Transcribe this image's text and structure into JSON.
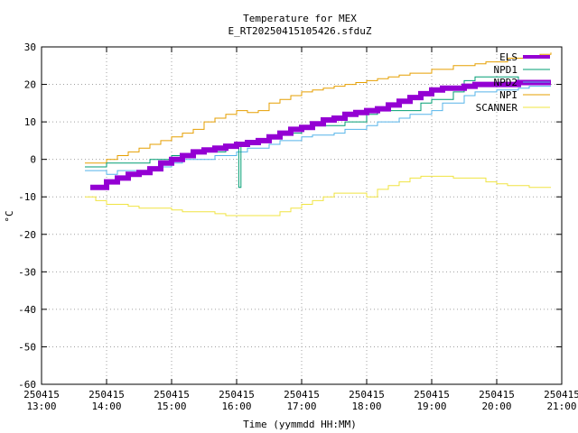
{
  "chart_data": {
    "type": "line",
    "title": "Temperature for MEX",
    "subtitle": "E_RT20250415105426.sfduZ",
    "xlabel": "Time (yymmdd HH:MM)",
    "ylabel": "°C",
    "xlim": [
      "13:00",
      "21:00"
    ],
    "ylim": [
      -60,
      30
    ],
    "yticks": [
      -60,
      -50,
      -40,
      -30,
      -20,
      -10,
      0,
      10,
      20,
      30
    ],
    "xticks": [
      {
        "date": "250415",
        "time": "13:00"
      },
      {
        "date": "250415",
        "time": "14:00"
      },
      {
        "date": "250415",
        "time": "15:00"
      },
      {
        "date": "250415",
        "time": "16:00"
      },
      {
        "date": "250415",
        "time": "17:00"
      },
      {
        "date": "250415",
        "time": "18:00"
      },
      {
        "date": "250415",
        "time": "19:00"
      },
      {
        "date": "250415",
        "time": "20:00"
      },
      {
        "date": "250415",
        "time": "21:00"
      }
    ],
    "grid": true,
    "legend_position": "top-right",
    "series": [
      {
        "name": "ELS",
        "color": "#9400d3",
        "width": 6,
        "x": [
          "13:45",
          "14:00",
          "14:10",
          "14:20",
          "14:30",
          "14:40",
          "14:50",
          "15:00",
          "15:10",
          "15:20",
          "15:30",
          "15:40",
          "15:50",
          "16:00",
          "16:10",
          "16:20",
          "16:30",
          "16:40",
          "16:50",
          "17:00",
          "17:10",
          "17:20",
          "17:30",
          "17:40",
          "17:50",
          "18:00",
          "18:10",
          "18:20",
          "18:30",
          "18:40",
          "18:50",
          "19:00",
          "19:10",
          "19:20",
          "19:30",
          "19:40",
          "19:50",
          "20:00",
          "20:10",
          "20:20",
          "20:30",
          "20:40",
          "20:50"
        ],
        "y": [
          -7.5,
          -6,
          -5,
          -4,
          -3.5,
          -2.5,
          -1,
          0,
          1,
          2,
          2.5,
          3,
          3.5,
          4,
          4.5,
          5,
          6,
          7,
          8,
          8.5,
          9.5,
          10.5,
          11,
          12,
          12.5,
          13,
          13.5,
          14.5,
          15.5,
          16.5,
          17.5,
          18.5,
          19,
          19,
          19.5,
          20,
          20,
          20,
          20,
          20.5,
          20.5,
          20.5,
          20.5
        ]
      },
      {
        "name": "NPD1",
        "color": "#009e73",
        "width": 1,
        "x": [
          "13:40",
          "13:55",
          "14:00",
          "14:30",
          "14:40",
          "15:00",
          "15:20",
          "15:30",
          "15:50",
          "16:00",
          "16:02",
          "16:04",
          "16:10",
          "16:30",
          "16:40",
          "17:00",
          "17:10",
          "17:30",
          "17:40",
          "18:00",
          "18:10",
          "18:30",
          "18:50",
          "19:00",
          "19:20",
          "19:30",
          "19:40",
          "20:00",
          "20:20",
          "20:30",
          "20:50"
        ],
        "y": [
          -2,
          -2,
          -1,
          -1,
          0,
          1,
          1.5,
          2,
          4,
          4,
          -7.5,
          4,
          4.5,
          6,
          7,
          8,
          9,
          9,
          10,
          12,
          13,
          13,
          15,
          16,
          18,
          21,
          22,
          22,
          21,
          20.5,
          20.5
        ]
      },
      {
        "name": "NPD2",
        "color": "#56b4e9",
        "width": 1,
        "x": [
          "13:40",
          "14:00",
          "14:10",
          "14:30",
          "14:40",
          "15:00",
          "15:10",
          "15:30",
          "15:40",
          "16:00",
          "16:10",
          "16:30",
          "16:40",
          "17:00",
          "17:10",
          "17:30",
          "17:40",
          "18:00",
          "18:10",
          "18:30",
          "18:40",
          "19:00",
          "19:10",
          "19:30",
          "19:40",
          "20:00",
          "20:20",
          "20:30",
          "20:50"
        ],
        "y": [
          -3,
          -4,
          -3,
          -3,
          -2,
          -1,
          0,
          0,
          1,
          2,
          3,
          4,
          5,
          6,
          6.5,
          7,
          8,
          9,
          10,
          11,
          12,
          13,
          15,
          17,
          18,
          18.5,
          19,
          19.5,
          19.5
        ]
      },
      {
        "name": "NPI",
        "color": "#e69f00",
        "width": 1,
        "x": [
          "13:40",
          "14:00",
          "14:10",
          "14:20",
          "14:30",
          "14:40",
          "14:50",
          "15:00",
          "15:10",
          "15:20",
          "15:30",
          "15:40",
          "15:50",
          "16:00",
          "16:10",
          "16:20",
          "16:30",
          "16:40",
          "16:50",
          "17:00",
          "17:10",
          "17:20",
          "17:30",
          "17:40",
          "17:50",
          "18:00",
          "18:10",
          "18:20",
          "18:30",
          "18:40",
          "18:50",
          "19:00",
          "19:10",
          "19:20",
          "19:30",
          "19:40",
          "19:50",
          "20:00",
          "20:10",
          "20:20",
          "20:30",
          "20:40",
          "20:50"
        ],
        "y": [
          -1,
          0,
          1,
          2,
          3,
          4,
          5,
          6,
          7,
          8,
          10,
          11,
          12,
          13,
          12.5,
          13,
          15,
          16,
          17,
          18,
          18.5,
          19,
          19.5,
          20,
          20.5,
          21,
          21.5,
          22,
          22.5,
          23,
          23,
          24,
          24,
          25,
          25,
          25.5,
          26,
          26,
          27,
          27,
          27.5,
          28,
          28.5
        ]
      },
      {
        "name": "SCANNER",
        "color": "#f0e442",
        "width": 1,
        "x": [
          "13:40",
          "13:50",
          "14:00",
          "14:10",
          "14:20",
          "14:30",
          "14:40",
          "14:50",
          "15:00",
          "15:10",
          "15:20",
          "15:30",
          "15:40",
          "15:50",
          "16:00",
          "16:10",
          "16:20",
          "16:30",
          "16:40",
          "16:50",
          "17:00",
          "17:10",
          "17:20",
          "17:30",
          "17:40",
          "17:50",
          "18:00",
          "18:10",
          "18:20",
          "18:30",
          "18:40",
          "18:50",
          "19:00",
          "19:10",
          "19:20",
          "19:30",
          "19:40",
          "19:50",
          "20:00",
          "20:10",
          "20:20",
          "20:30",
          "20:40",
          "20:50"
        ],
        "y": [
          -10,
          -11,
          -12,
          -12,
          -12.5,
          -13,
          -13,
          -13,
          -13.5,
          -14,
          -14,
          -14,
          -14.5,
          -15,
          -15,
          -15,
          -15,
          -15,
          -14,
          -13,
          -12,
          -11,
          -10,
          -9,
          -9,
          -9,
          -10,
          -8,
          -7,
          -6,
          -5,
          -4.5,
          -4.5,
          -4.5,
          -5,
          -5,
          -5,
          -6,
          -6.5,
          -7,
          -7,
          -7.5,
          -7.5,
          -7.5
        ]
      }
    ]
  }
}
